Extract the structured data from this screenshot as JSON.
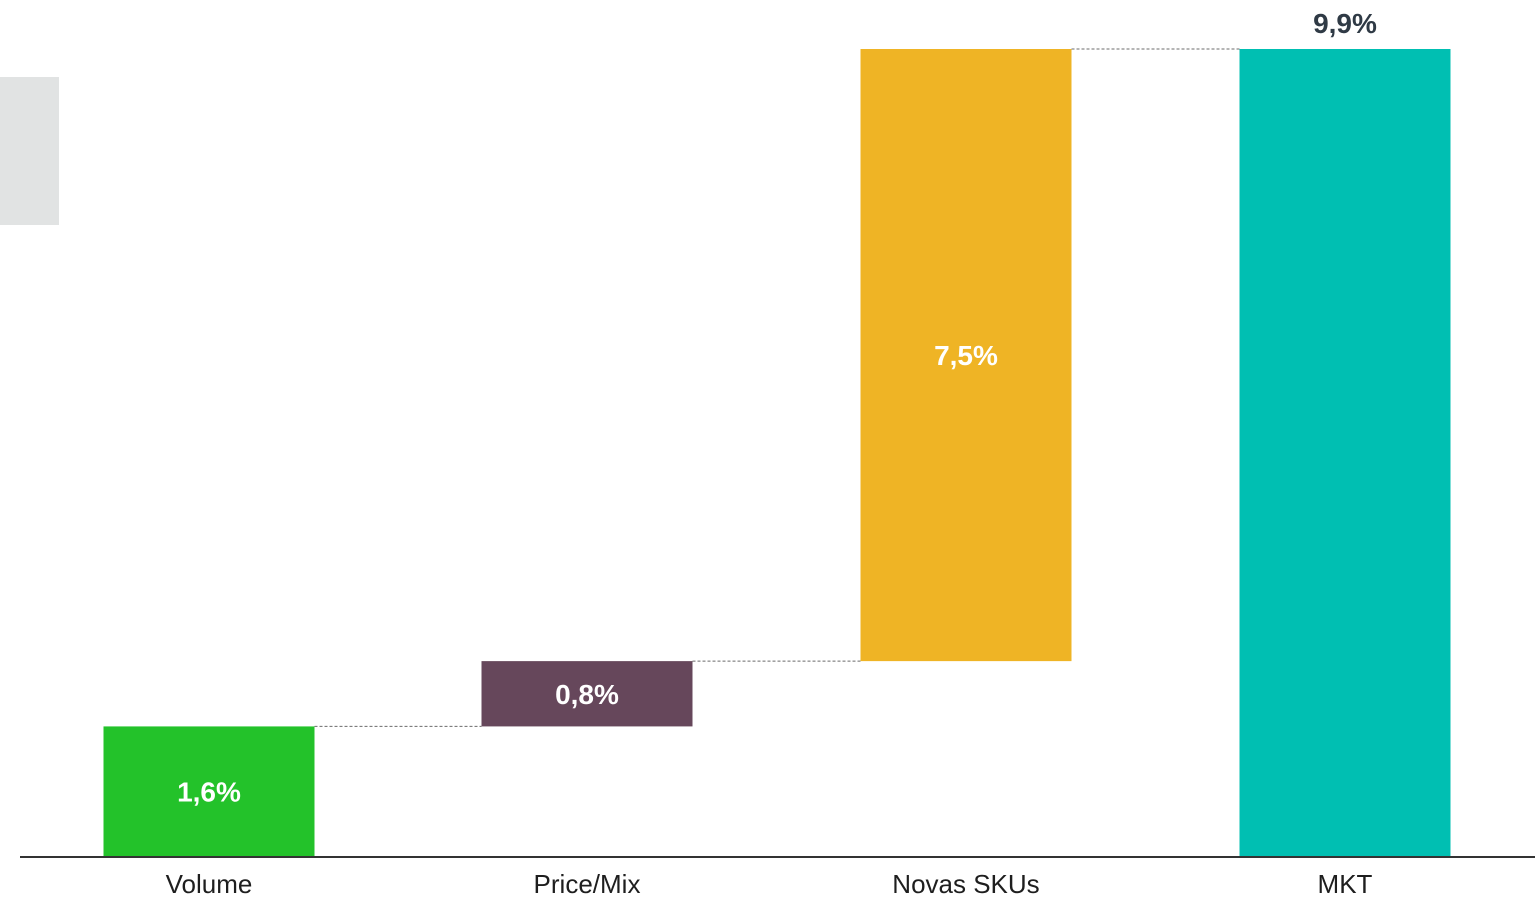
{
  "chart_data": {
    "type": "bar",
    "subtype": "waterfall",
    "categories": [
      "Volume",
      "Price/Mix",
      "Novas SKUs",
      "MKT"
    ],
    "values": [
      1.6,
      0.8,
      7.5,
      9.9
    ],
    "bar_kinds": [
      "delta",
      "delta",
      "delta",
      "total"
    ],
    "data_labels": [
      "1,6%",
      "0,8%",
      "7,5%",
      "9,9%"
    ],
    "colors": [
      "#23c22a",
      "#66475b",
      "#efb425",
      "#00bfb2"
    ],
    "label_colors": [
      "#ffffff",
      "#ffffff",
      "#ffffff",
      "#2f3a45"
    ],
    "title": "",
    "xlabel": "",
    "ylabel": "",
    "ylim": [
      0,
      9.9
    ],
    "grid": false,
    "legend": "none",
    "connector_style": "dashed"
  }
}
